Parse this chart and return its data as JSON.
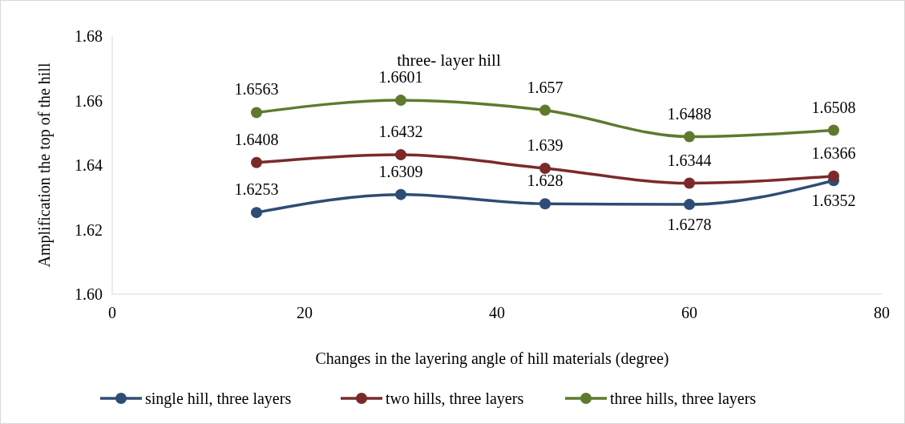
{
  "chart_data": {
    "type": "line",
    "title": "three- layer hill",
    "xlabel": "Changes in the layering angle of hill materials (degree)",
    "ylabel": "Amplification the top of the hill",
    "x": [
      15,
      30,
      45,
      60,
      75
    ],
    "series": [
      {
        "name": "single hill, three layers",
        "color": "#2e4d74",
        "values": [
          1.6253,
          1.6309,
          1.628,
          1.6278,
          1.6352
        ]
      },
      {
        "name": "two hills, three layers",
        "color": "#7b2a2a",
        "values": [
          1.6408,
          1.6432,
          1.639,
          1.6344,
          1.6366
        ]
      },
      {
        "name": "three hills, three layers",
        "color": "#5f7a2e",
        "values": [
          1.6563,
          1.6601,
          1.657,
          1.6488,
          1.6508
        ]
      }
    ],
    "xlim": [
      0,
      80
    ],
    "xticks": [
      0,
      20,
      40,
      60,
      80
    ],
    "ylim": [
      1.6,
      1.68
    ],
    "yticks": [
      {
        "value": 1.6,
        "label": "1.60"
      },
      {
        "value": 1.62,
        "label": "1.62"
      },
      {
        "value": 1.64,
        "label": "1.64"
      },
      {
        "value": 1.66,
        "label": "1.66"
      },
      {
        "value": 1.68,
        "label": "1.68"
      }
    ],
    "grid": false,
    "legend": "bottom",
    "marker": "circle",
    "line_style": "solid",
    "data_labels": true
  }
}
